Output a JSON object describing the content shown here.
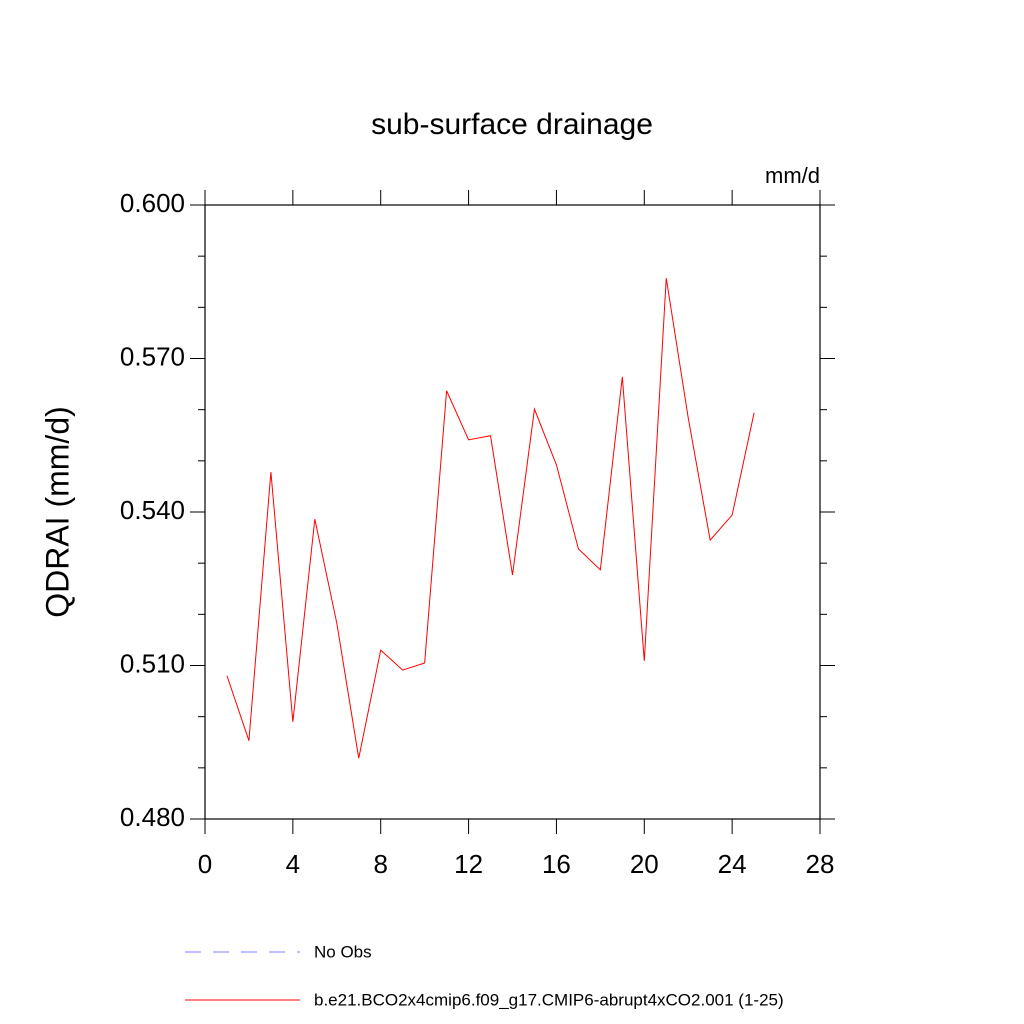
{
  "chart_data": {
    "type": "line",
    "title": "sub-surface drainage",
    "y_label": "QDRAI  (mm/d)",
    "units": "mm/d",
    "x": [
      1,
      2,
      3,
      4,
      5,
      6,
      7,
      8,
      9,
      10,
      11,
      12,
      13,
      14,
      15,
      16,
      17,
      18,
      19,
      20,
      21,
      22,
      23,
      24,
      25
    ],
    "series": [
      {
        "name": "No Obs",
        "color": "#7f7fff",
        "dashed": true,
        "values": [
          null,
          null,
          null,
          null,
          null,
          null,
          null,
          null,
          null,
          null,
          null,
          null,
          null,
          null,
          null,
          null,
          null,
          null,
          null,
          null,
          null,
          null,
          null,
          null,
          null
        ]
      },
      {
        "name": "b.e21.BCO2x4cmip6.f09_g17.CMIP6-abrupt4xCO2.001 (1-25)",
        "color": "#ff0000",
        "dashed": false,
        "values": [
          0.508,
          0.4953,
          0.5478,
          0.499,
          0.5386,
          0.5183,
          0.4919,
          0.513,
          0.5091,
          0.5105,
          0.5637,
          0.5541,
          0.5549,
          0.5277,
          0.5601,
          0.5492,
          0.5328,
          0.5287,
          0.5664,
          0.5109,
          0.5857,
          0.5584,
          0.5345,
          0.5394,
          0.5594
        ]
      }
    ],
    "xlim": [
      0,
      28
    ],
    "xticks": [
      0,
      4,
      8,
      12,
      16,
      20,
      24,
      28
    ],
    "ylim": [
      0.48,
      0.6
    ],
    "yticks": [
      {
        "value": 0.48,
        "label": "0.480"
      },
      {
        "value": 0.51,
        "label": "0.510"
      },
      {
        "value": 0.54,
        "label": "0.540"
      },
      {
        "value": 0.57,
        "label": "0.570"
      },
      {
        "value": 0.6,
        "label": "0.600"
      }
    ],
    "grid": false
  }
}
